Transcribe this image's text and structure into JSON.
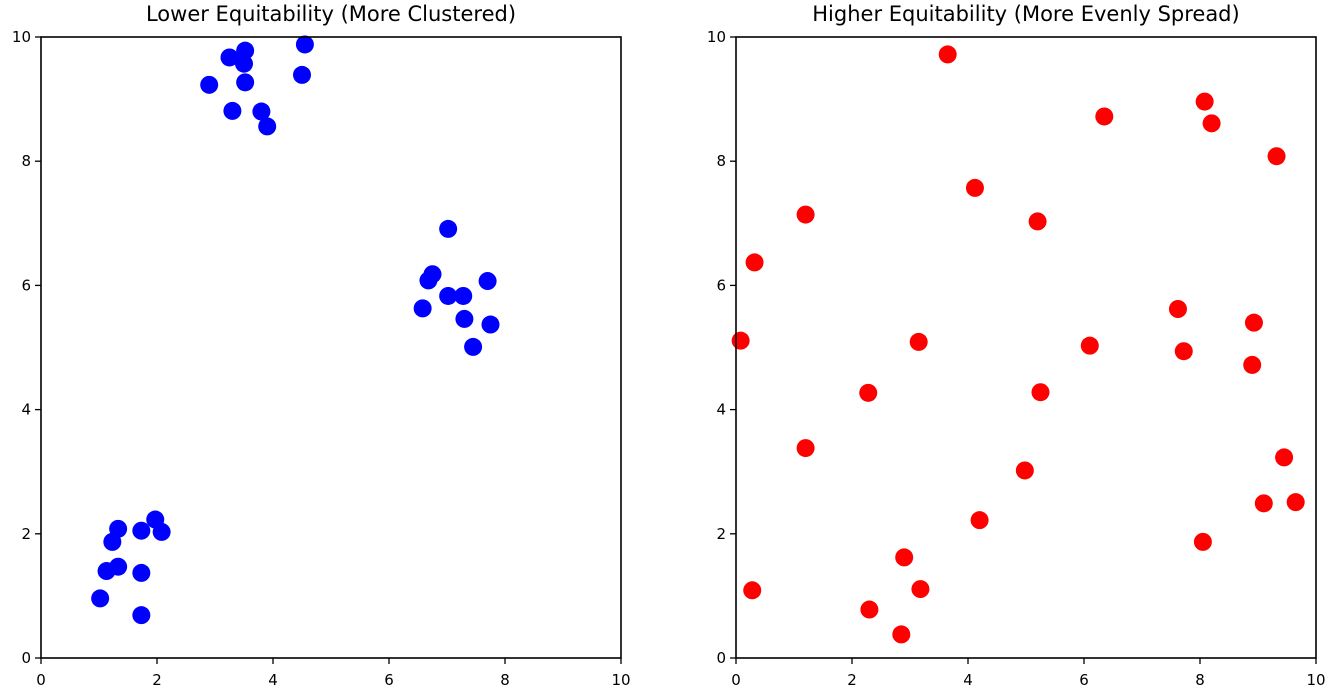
{
  "chart_data": [
    {
      "type": "scatter",
      "title": "Lower Equitability (More Clustered)",
      "xlabel": "",
      "ylabel": "",
      "xlim": [
        0,
        10
      ],
      "ylim": [
        0,
        10
      ],
      "xticks": [
        0,
        2,
        4,
        6,
        8,
        10
      ],
      "yticks": [
        0,
        2,
        4,
        6,
        8,
        10
      ],
      "grid": false,
      "series": [
        {
          "color": "#0000ff",
          "points": [
            [
              3.25,
              9.67
            ],
            [
              3.52,
              9.78
            ],
            [
              3.5,
              9.57
            ],
            [
              4.55,
              9.88
            ],
            [
              2.9,
              9.23
            ],
            [
              3.52,
              9.27
            ],
            [
              4.5,
              9.39
            ],
            [
              3.3,
              8.81
            ],
            [
              3.8,
              8.8
            ],
            [
              3.9,
              8.56
            ],
            [
              7.02,
              6.91
            ],
            [
              6.75,
              6.18
            ],
            [
              6.68,
              6.08
            ],
            [
              7.7,
              6.07
            ],
            [
              7.02,
              5.83
            ],
            [
              7.28,
              5.83
            ],
            [
              6.58,
              5.63
            ],
            [
              7.3,
              5.46
            ],
            [
              7.75,
              5.37
            ],
            [
              7.45,
              5.01
            ],
            [
              1.33,
              2.08
            ],
            [
              1.97,
              2.23
            ],
            [
              2.08,
              2.03
            ],
            [
              1.73,
              2.05
            ],
            [
              1.23,
              1.87
            ],
            [
              1.33,
              1.47
            ],
            [
              1.13,
              1.4
            ],
            [
              1.73,
              1.37
            ],
            [
              1.02,
              0.96
            ],
            [
              1.73,
              0.69
            ]
          ]
        }
      ]
    },
    {
      "type": "scatter",
      "title": "Higher Equitability (More Evenly Spread)",
      "xlabel": "",
      "ylabel": "",
      "xlim": [
        0,
        10
      ],
      "ylim": [
        0,
        10
      ],
      "xticks": [
        0,
        2,
        4,
        6,
        8,
        10
      ],
      "yticks": [
        0,
        2,
        4,
        6,
        8,
        10
      ],
      "grid": false,
      "series": [
        {
          "color": "#ff0000",
          "points": [
            [
              3.65,
              9.72
            ],
            [
              8.08,
              8.96
            ],
            [
              6.35,
              8.72
            ],
            [
              8.2,
              8.61
            ],
            [
              9.32,
              8.08
            ],
            [
              4.12,
              7.57
            ],
            [
              1.2,
              7.14
            ],
            [
              5.2,
              7.03
            ],
            [
              0.32,
              6.37
            ],
            [
              7.62,
              5.62
            ],
            [
              8.93,
              5.4
            ],
            [
              0.08,
              5.11
            ],
            [
              3.15,
              5.09
            ],
            [
              6.1,
              5.03
            ],
            [
              7.72,
              4.94
            ],
            [
              8.9,
              4.72
            ],
            [
              2.28,
              4.27
            ],
            [
              5.25,
              4.28
            ],
            [
              1.2,
              3.38
            ],
            [
              9.45,
              3.23
            ],
            [
              4.98,
              3.02
            ],
            [
              9.1,
              2.49
            ],
            [
              9.65,
              2.51
            ],
            [
              4.2,
              2.22
            ],
            [
              8.05,
              1.87
            ],
            [
              2.9,
              1.62
            ],
            [
              0.28,
              1.09
            ],
            [
              3.18,
              1.11
            ],
            [
              2.3,
              0.78
            ],
            [
              2.85,
              0.38
            ]
          ]
        }
      ]
    }
  ]
}
